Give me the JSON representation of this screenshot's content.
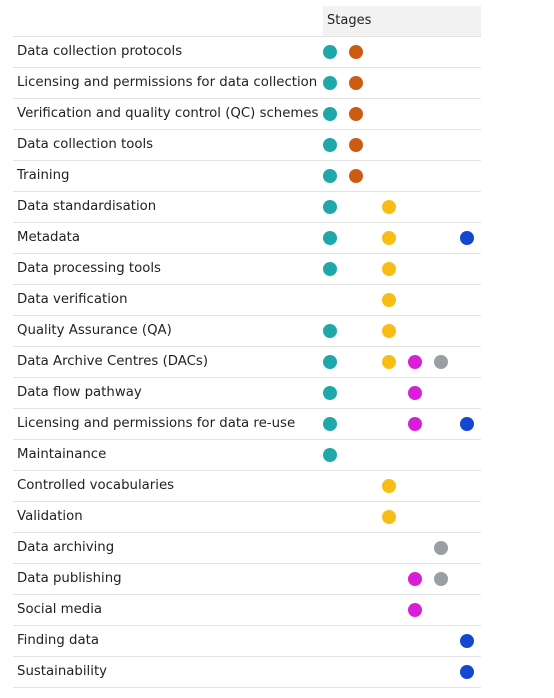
{
  "header": {
    "stages_label": "Stages"
  },
  "stage_colors": [
    "#1fa8aa",
    "#cc5c12",
    "#f8bd14",
    "#d81ed8",
    "#9a9fa5",
    "#1446d0"
  ],
  "rows": [
    {
      "label": "Data collection protocols",
      "stages": [
        1,
        1,
        0,
        0,
        0,
        0
      ]
    },
    {
      "label": "Licensing and permissions for data collection",
      "stages": [
        1,
        1,
        0,
        0,
        0,
        0
      ]
    },
    {
      "label": "Verification and quality control (QC) schemes",
      "stages": [
        1,
        1,
        0,
        0,
        0,
        0
      ]
    },
    {
      "label": "Data collection tools",
      "stages": [
        1,
        1,
        0,
        0,
        0,
        0
      ]
    },
    {
      "label": "Training",
      "stages": [
        1,
        1,
        0,
        0,
        0,
        0
      ]
    },
    {
      "label": "Data standardisation",
      "stages": [
        1,
        0,
        1,
        0,
        0,
        0
      ]
    },
    {
      "label": "Metadata",
      "stages": [
        1,
        0,
        1,
        0,
        0,
        1
      ]
    },
    {
      "label": "Data processing tools",
      "stages": [
        1,
        0,
        1,
        0,
        0,
        0
      ]
    },
    {
      "label": "Data verification",
      "stages": [
        0,
        0,
        1,
        0,
        0,
        0
      ]
    },
    {
      "label": "Quality Assurance (QA)",
      "stages": [
        1,
        0,
        1,
        0,
        0,
        0
      ]
    },
    {
      "label": "Data Archive Centres (DACs)",
      "stages": [
        1,
        0,
        1,
        1,
        1,
        0
      ]
    },
    {
      "label": "Data flow pathway",
      "stages": [
        1,
        0,
        0,
        1,
        0,
        0
      ]
    },
    {
      "label": "Licensing and permissions for data re-use",
      "stages": [
        1,
        0,
        0,
        1,
        0,
        1
      ]
    },
    {
      "label": "Maintainance",
      "stages": [
        1,
        0,
        0,
        0,
        0,
        0
      ]
    },
    {
      "label": "Controlled vocabularies",
      "stages": [
        0,
        0,
        1,
        0,
        0,
        0
      ]
    },
    {
      "label": "Validation",
      "stages": [
        0,
        0,
        1,
        0,
        0,
        0
      ]
    },
    {
      "label": "Data archiving",
      "stages": [
        0,
        0,
        0,
        0,
        1,
        0
      ]
    },
    {
      "label": "Data publishing",
      "stages": [
        0,
        0,
        0,
        1,
        1,
        0
      ]
    },
    {
      "label": "Social media",
      "stages": [
        0,
        0,
        0,
        1,
        0,
        0
      ]
    },
    {
      "label": "Finding data",
      "stages": [
        0,
        0,
        0,
        0,
        0,
        1
      ]
    },
    {
      "label": "Sustainability",
      "stages": [
        0,
        0,
        0,
        0,
        0,
        1
      ]
    }
  ]
}
